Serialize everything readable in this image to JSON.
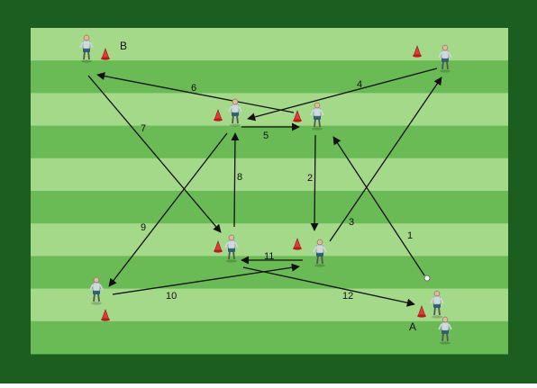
{
  "colors": {
    "frame": "#1b5e20",
    "stripe_light": "#a5d98a",
    "stripe_dark": "#6abb55",
    "arrow": "#111111",
    "cone": "#e53935",
    "player_shirt": "#cfd8dc",
    "player_shorts": "#2f5f73"
  },
  "positions": {
    "B": "B",
    "A": "A"
  },
  "passes": [
    {
      "label": "1"
    },
    {
      "label": "2"
    },
    {
      "label": "3"
    },
    {
      "label": "4"
    },
    {
      "label": "5"
    },
    {
      "label": "6"
    },
    {
      "label": "7"
    },
    {
      "label": "8"
    },
    {
      "label": "9"
    },
    {
      "label": "10"
    },
    {
      "label": "11"
    },
    {
      "label": "12"
    }
  ],
  "icons": {
    "player": "player-icon",
    "cone": "cone-icon",
    "ball": "ball-icon"
  }
}
